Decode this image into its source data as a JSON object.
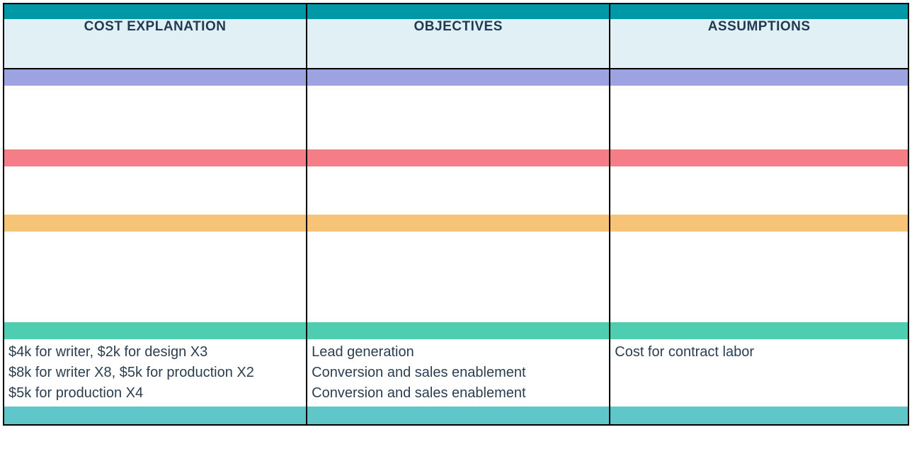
{
  "colors": {
    "top_bar": "#0097a7",
    "header_bg": "#e1f0f4",
    "header_text": "#1f3b52",
    "band_purple": "#9ca3e0",
    "band_pink": "#f57d87",
    "band_orange": "#f7c377",
    "band_green": "#4ecdb0",
    "band_teal": "#5fc7c9",
    "content_text": "#2b3e50"
  },
  "headers": {
    "col1": "COST EXPLANATION",
    "col2": "OBJECTIVES",
    "col3": "ASSUMPTIONS"
  },
  "content": {
    "cost_explanation": "$4k for writer, $2k for design X3\n$8k for writer X8, $5k for production X2\n$5k for production X4",
    "objectives": "Lead generation\nConversion and sales enablement\nConversion and sales enablement",
    "assumptions": "Cost for contract labor"
  }
}
